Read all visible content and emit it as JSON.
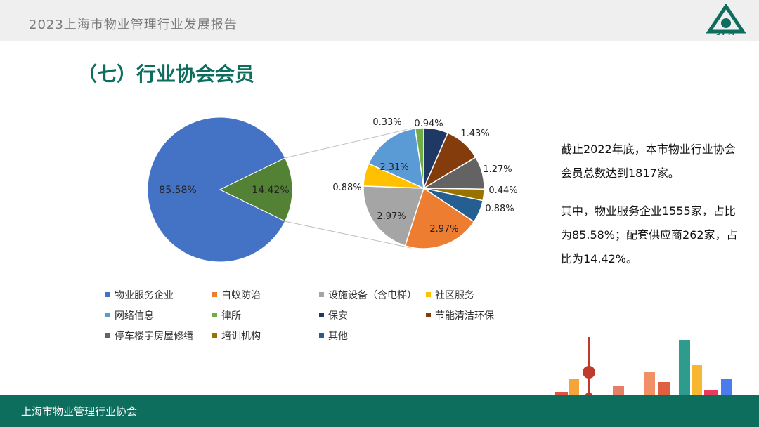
{
  "header": {
    "title": "2023上海市物业管理行业发展报告",
    "logo_text": "SPM"
  },
  "section": {
    "title": "（七）行业协会会员"
  },
  "description": {
    "p1": "截止2022年底，本市物业行业协会会员总数达到1817家。",
    "p2": "其中，物业服务企业1555家，占比为85.58%；配套供应商262家，占比为14.42%。"
  },
  "footer": {
    "text": "上海市物业管理行业协会"
  },
  "chart_data": {
    "type": "pie",
    "main_pie": {
      "slices": [
        {
          "name": "物业服务企业",
          "value": 85.58,
          "label": "85.58%",
          "color": "#4472c4"
        },
        {
          "name": "",
          "value": 14.42,
          "label": "14.42%",
          "color": "#548235"
        }
      ]
    },
    "sub_pie": {
      "slices": [
        {
          "name": "保安",
          "value": 0.94,
          "label": "0.94%",
          "color": "#203864"
        },
        {
          "name": "节能清洁环保",
          "value": 1.43,
          "label": "1.43%",
          "color": "#843c0c"
        },
        {
          "name": "停车楼宇房屋修缮",
          "value": 1.27,
          "label": "1.27%",
          "color": "#636363"
        },
        {
          "name": "培训机构",
          "value": 0.44,
          "label": "0.44%",
          "color": "#997300"
        },
        {
          "name": "其他",
          "value": 0.88,
          "label": "0.88%",
          "color": "#255e91"
        },
        {
          "name": "白蚁防治",
          "value": 2.97,
          "label": "2.97%",
          "color": "#ed7d31"
        },
        {
          "name": "设施设备（含电梯）",
          "value": 2.97,
          "label": "2.97%",
          "color": "#a5a5a5"
        },
        {
          "name": "社区服务",
          "value": 0.88,
          "label": "0.88%",
          "color": "#ffc000"
        },
        {
          "name": "网络信息",
          "value": 2.31,
          "label": "2.31%",
          "color": "#5b9bd5"
        },
        {
          "name": "律所",
          "value": 0.33,
          "label": "0.33%",
          "color": "#70ad47"
        }
      ]
    },
    "legend": [
      {
        "name": "物业服务企业",
        "color": "#4472c4"
      },
      {
        "name": "白蚁防治",
        "color": "#ed7d31"
      },
      {
        "name": "设施设备（含电梯）",
        "color": "#a5a5a5"
      },
      {
        "name": "社区服务",
        "color": "#ffc000"
      },
      {
        "name": "网络信息",
        "color": "#5b9bd5"
      },
      {
        "name": "律所",
        "color": "#70ad47"
      },
      {
        "name": "保安",
        "color": "#203864"
      },
      {
        "name": "节能清洁环保",
        "color": "#843c0c"
      },
      {
        "name": "停车楼宇房屋修缮",
        "color": "#636363"
      },
      {
        "name": "培训机构",
        "color": "#997300"
      },
      {
        "name": "其他",
        "color": "#255e91"
      }
    ]
  }
}
